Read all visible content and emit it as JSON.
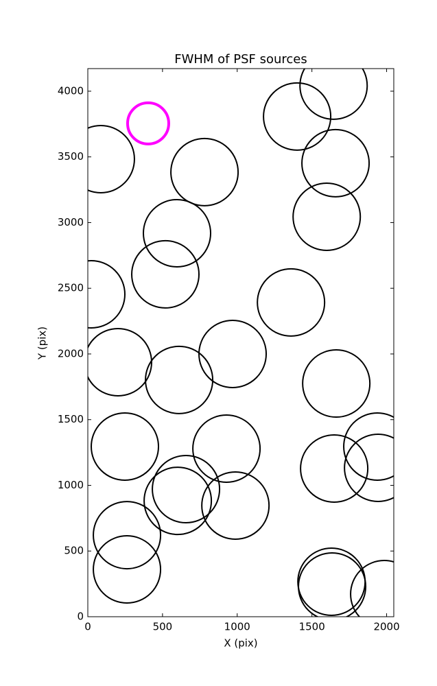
{
  "chart_data": {
    "type": "scatter",
    "title": "FWHM of PSF sources",
    "xlabel": "X (pix)",
    "ylabel": "Y (pix)",
    "xlim": [
      0,
      2048
    ],
    "ylim": [
      0,
      4172
    ],
    "xticks": [
      0,
      500,
      1000,
      1500,
      2000
    ],
    "yticks": [
      0,
      500,
      1000,
      1500,
      2000,
      2500,
      3000,
      3500,
      4000
    ],
    "grid": false,
    "series": [
      {
        "color": "#000000",
        "marker": "open-circle",
        "marker_radius": 49,
        "x": [
          87,
          781,
          1401,
          1645,
          1658,
          1599,
          597,
          519,
          23,
          1360,
          202,
          969,
          611,
          1663,
          248,
          928,
          1938,
          1649,
          1943,
          657,
          602,
          988,
          262,
          262,
          1631,
          1635,
          1984
        ],
        "y": [
          3483,
          3384,
          3807,
          4042,
          3452,
          3044,
          2919,
          2606,
          2454,
          2392,
          1937,
          2000,
          1802,
          1775,
          1295,
          1279,
          1295,
          1128,
          1133,
          971,
          882,
          846,
          621,
          360,
          266,
          230,
          172
        ]
      },
      {
        "color": "#ff00ff",
        "marker": "open-circle",
        "marker_radius": 30,
        "x": [
          404
        ],
        "y": [
          3755
        ]
      }
    ]
  }
}
